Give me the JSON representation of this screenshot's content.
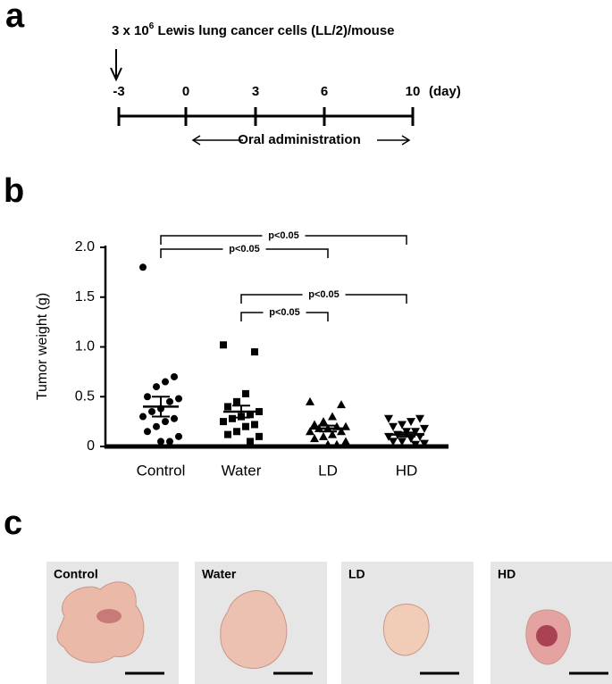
{
  "panels": [
    "a",
    "b",
    "c"
  ],
  "timeline": {
    "cells_prefix": "3 x 10",
    "cells_exponent": "6",
    "cells_suffix": " Lewis lung cancer cells (LL/2)/mouse",
    "days": [
      "-3",
      "0",
      "3",
      "6",
      "10"
    ],
    "unit": "(day)",
    "treatment": "Oral administration"
  },
  "chart_data": {
    "type": "dot",
    "ylabel": "Tumor weight (g)",
    "ylim": [
      0,
      2
    ],
    "yticks": [
      0,
      0.5,
      {
        "value": 1,
        "label": "1.0"
      },
      1.5,
      {
        "value": 2,
        "label": "2.0"
      }
    ],
    "series": [
      {
        "name": "Control",
        "marker": "circle",
        "color": "#000000",
        "mean": 0.4,
        "sem": 0.1,
        "values": [
          1.8,
          0.7,
          0.65,
          0.6,
          0.5,
          0.48,
          0.45,
          0.38,
          0.35,
          0.3,
          0.28,
          0.25,
          0.2,
          0.15,
          0.1,
          0.05,
          0.05
        ]
      },
      {
        "name": "Water",
        "marker": "square",
        "color": "#000000",
        "mean": 0.35,
        "sem": 0.06,
        "values": [
          1.02,
          0.95,
          0.53,
          0.45,
          0.4,
          0.35,
          0.32,
          0.3,
          0.28,
          0.25,
          0.22,
          0.2,
          0.15,
          0.12,
          0.1,
          0.05,
          0.3
        ]
      },
      {
        "name": "LD",
        "marker": "triangle",
        "color": "#000000",
        "mean": 0.18,
        "sem": 0.03,
        "values": [
          0.45,
          0.42,
          0.3,
          0.25,
          0.22,
          0.2,
          0.2,
          0.18,
          0.18,
          0.15,
          0.15,
          0.12,
          0.1,
          0.08,
          0.05,
          0.02,
          0.02
        ]
      },
      {
        "name": "HD",
        "marker": "triangle-down",
        "color": "#000000",
        "mean": 0.12,
        "sem": 0.02,
        "values": [
          0.28,
          0.28,
          0.25,
          0.22,
          0.2,
          0.18,
          0.15,
          0.15,
          0.12,
          0.1,
          0.1,
          0.08,
          0.05,
          0.05,
          0.03,
          0.02
        ]
      }
    ],
    "annotations": [
      "p<0.05",
      "p<0.05",
      "p<0.05",
      "p<0.05"
    ]
  },
  "photos": [
    "Control",
    "Water",
    "LD",
    "HD"
  ]
}
